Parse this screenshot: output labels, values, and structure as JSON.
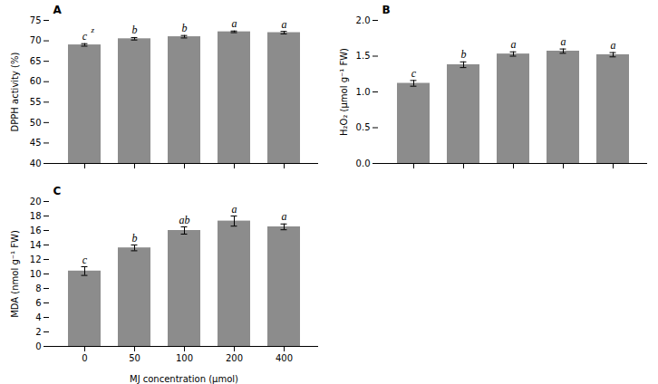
{
  "chart_data": [
    {
      "type": "bar",
      "title": "A",
      "categories": [
        "0",
        "50",
        "100",
        "200",
        "400"
      ],
      "values": [
        69.0,
        70.5,
        71.0,
        72.2,
        72.0
      ],
      "errors": [
        0.3,
        0.3,
        0.3,
        0.2,
        0.3
      ],
      "bar_labels": [
        "c",
        "b",
        "b",
        "a",
        "a"
      ],
      "superscripts": [
        {
          "category": "0",
          "text": "z"
        }
      ],
      "ylabel": "DPPH activity (%)",
      "ylim": [
        40,
        75
      ],
      "yticks": [
        40,
        45,
        50,
        55,
        60,
        65,
        70,
        75
      ],
      "color": "#8c8c8c",
      "grid": false,
      "tick_labels": "y"
    },
    {
      "type": "bar",
      "title": "B",
      "categories": [
        "0",
        "50",
        "100",
        "200",
        "400"
      ],
      "values": [
        1.12,
        1.38,
        1.53,
        1.57,
        1.52
      ],
      "errors": [
        0.04,
        0.04,
        0.03,
        0.03,
        0.03
      ],
      "bar_labels": [
        "c",
        "b",
        "a",
        "a",
        "a"
      ],
      "ylabel": "H₂O₂ (μmol g⁻¹ FW)",
      "ylim": [
        0.0,
        2.0
      ],
      "yticks": [
        {
          "value": 0,
          "label": "0.0"
        },
        0.5,
        {
          "value": 1,
          "label": "1.0"
        },
        1.5,
        {
          "value": 2,
          "label": "2.0"
        }
      ],
      "color": "#8c8c8c",
      "grid": false,
      "tick_labels": "y"
    },
    {
      "type": "bar",
      "title": "C",
      "categories": [
        "0",
        "50",
        "100",
        "200",
        "400"
      ],
      "values": [
        10.4,
        13.6,
        16.0,
        17.3,
        16.5
      ],
      "errors": [
        0.6,
        0.4,
        0.5,
        0.7,
        0.4
      ],
      "bar_labels": [
        "c",
        "b",
        "ab",
        "a",
        "a"
      ],
      "ylabel": "MDA (nmol g⁻¹ FW)",
      "xlabel": "MJ concentration (μmol)",
      "ylim": [
        0,
        20
      ],
      "yticks": [
        0,
        2,
        4,
        6,
        8,
        10,
        12,
        14,
        16,
        18,
        20
      ],
      "color": "#8c8c8c",
      "grid": false
    }
  ]
}
